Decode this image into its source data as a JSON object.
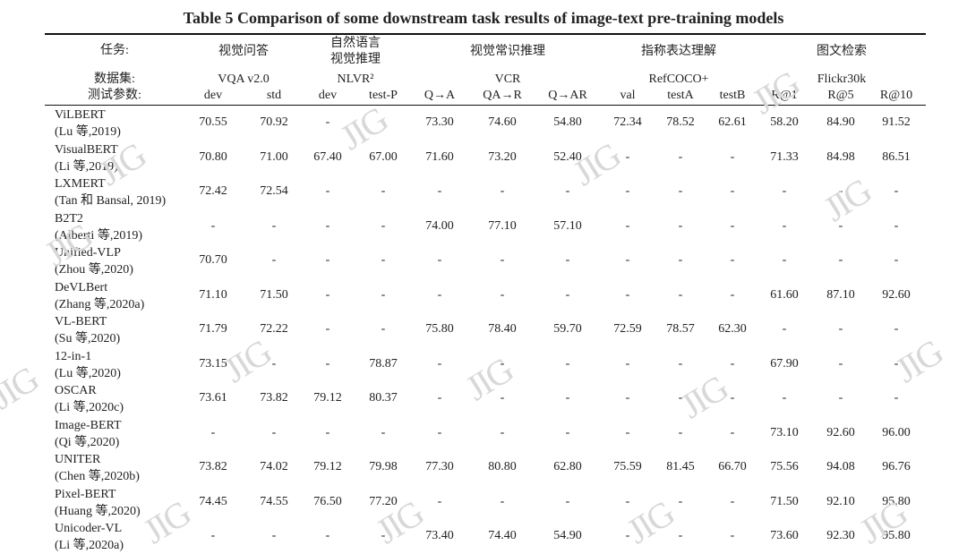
{
  "title": "Table 5 Comparison of some downstream task results of image-text pre-training models",
  "header": {
    "row_labels": [
      "任务:",
      "数据集:",
      "测试参数:"
    ],
    "tasks": [
      "视觉问答",
      "自然语言\n视觉推理",
      "视觉常识推理",
      "指称表达理解",
      "图文检索"
    ],
    "datasets": [
      "VQA v2.0",
      "NLVR²",
      "VCR",
      "RefCOCO+",
      "Flickr30k"
    ],
    "metrics": [
      "dev",
      "std",
      "dev",
      "test-P",
      "Q→A",
      "QA→R",
      "Q→AR",
      "val",
      "testA",
      "testB",
      "R@1",
      "R@5",
      "R@10"
    ]
  },
  "rows": [
    {
      "name": "ViLBERT",
      "ref": "(Lu 等,2019)",
      "values": [
        "70.55",
        "70.92",
        "-",
        "-",
        "73.30",
        "74.60",
        "54.80",
        "72.34",
        "78.52",
        "62.61",
        "58.20",
        "84.90",
        "91.52"
      ]
    },
    {
      "name": "VisualBERT",
      "ref": "(Li 等,2019)",
      "values": [
        "70.80",
        "71.00",
        "67.40",
        "67.00",
        "71.60",
        "73.20",
        "52.40",
        "-",
        "-",
        "-",
        "71.33",
        "84.98",
        "86.51"
      ]
    },
    {
      "name": "LXMERT",
      "ref": "(Tan 和 Bansal, 2019)",
      "values": [
        "72.42",
        "72.54",
        "-",
        "-",
        "-",
        "-",
        "-",
        "-",
        "-",
        "-",
        "-",
        "-",
        "-"
      ]
    },
    {
      "name": "B2T2",
      "ref": "(Alberti 等,2019)",
      "values": [
        "-",
        "-",
        "-",
        "-",
        "74.00",
        "77.10",
        "57.10",
        "-",
        "-",
        "-",
        "-",
        "-",
        "-"
      ]
    },
    {
      "name": "Unified-VLP",
      "ref": "(Zhou 等,2020)",
      "values": [
        "70.70",
        "-",
        "-",
        "-",
        "-",
        "-",
        "-",
        "-",
        "-",
        "-",
        "-",
        "-",
        "-"
      ]
    },
    {
      "name": "DeVLBert",
      "ref": "(Zhang 等,2020a)",
      "values": [
        "71.10",
        "71.50",
        "-",
        "-",
        "-",
        "-",
        "-",
        "-",
        "-",
        "-",
        "61.60",
        "87.10",
        "92.60"
      ]
    },
    {
      "name": "VL-BERT",
      "ref": "(Su 等,2020)",
      "values": [
        "71.79",
        "72.22",
        "-",
        "-",
        "75.80",
        "78.40",
        "59.70",
        "72.59",
        "78.57",
        "62.30",
        "-",
        "-",
        "-"
      ]
    },
    {
      "name": "12-in-1",
      "ref": "(Lu 等,2020)",
      "values": [
        "73.15",
        "-",
        "-",
        "78.87",
        "-",
        "-",
        "-",
        "-",
        "-",
        "-",
        "67.90",
        "-",
        "-"
      ]
    },
    {
      "name": "OSCAR",
      "ref": "(Li 等,2020c)",
      "values": [
        "73.61",
        "73.82",
        "79.12",
        "80.37",
        "-",
        "-",
        "-",
        "-",
        "-",
        "-",
        "-",
        "-",
        "-"
      ]
    },
    {
      "name": "Image-BERT",
      "ref": "(Qi 等,2020)",
      "values": [
        "-",
        "-",
        "-",
        "-",
        "-",
        "-",
        "-",
        "-",
        "-",
        "-",
        "73.10",
        "92.60",
        "96.00"
      ]
    },
    {
      "name": "UNITER",
      "ref": "(Chen 等,2020b)",
      "values": [
        "73.82",
        "74.02",
        "79.12",
        "79.98",
        "77.30",
        "80.80",
        "62.80",
        "75.59",
        "81.45",
        "66.70",
        "75.56",
        "94.08",
        "96.76"
      ]
    },
    {
      "name": "Pixel-BERT",
      "ref": "(Huang 等,2020)",
      "values": [
        "74.45",
        "74.55",
        "76.50",
        "77.20",
        "-",
        "-",
        "-",
        "-",
        "-",
        "-",
        "71.50",
        "92.10",
        "95.80"
      ]
    },
    {
      "name": "Unicoder-VL",
      "ref": "(Li 等,2020a)",
      "values": [
        "-",
        "-",
        "-",
        "-",
        "73.40",
        "74.40",
        "54.90",
        "-",
        "-",
        "-",
        "73.60",
        "92.30",
        "95.80"
      ]
    }
  ],
  "watermark": "JIG"
}
